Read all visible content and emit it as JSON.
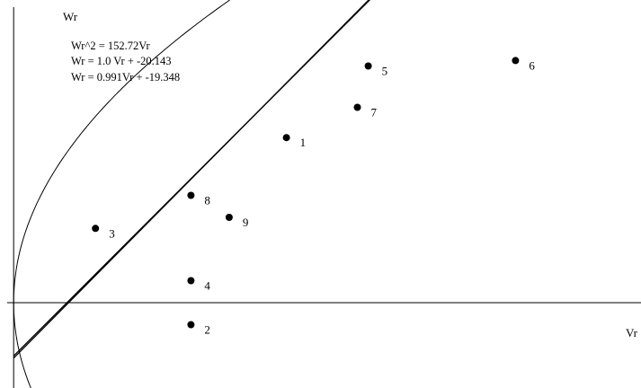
{
  "chart_data": {
    "type": "scatter",
    "xlabel": "Vr",
    "ylabel": "Wr",
    "equations": [
      "Wr^2 = 152.72Vr",
      "Wr  =  1.0 Vr + -20.143",
      "Wr  = 0.991Vr + -19.348"
    ],
    "xlim": [
      -5,
      230
    ],
    "ylim": [
      -31,
      110
    ],
    "points": [
      {
        "label": "1",
        "x": 100,
        "y": 60
      },
      {
        "label": "2",
        "x": 65,
        "y": -8
      },
      {
        "label": "3",
        "x": 30,
        "y": 27
      },
      {
        "label": "4",
        "x": 65,
        "y": 8
      },
      {
        "label": "5",
        "x": 130,
        "y": 86
      },
      {
        "label": "6",
        "x": 184,
        "y": 88
      },
      {
        "label": "7",
        "x": 126,
        "y": 71
      },
      {
        "label": "8",
        "x": 65,
        "y": 39
      },
      {
        "label": "9",
        "x": 79,
        "y": 31
      }
    ],
    "curves": [
      {
        "equation": "Wr^2 = 152.72Vr",
        "kind": "parabola",
        "coef": 152.72
      },
      {
        "equation": "Wr  =  1.0 Vr + -20.143",
        "kind": "line",
        "slope": 1.0,
        "intercept": -20.143
      },
      {
        "equation": "Wr  = 0.991Vr + -19.348",
        "kind": "line",
        "slope": 0.991,
        "intercept": -19.348
      }
    ],
    "grid": false,
    "legend": "none"
  }
}
